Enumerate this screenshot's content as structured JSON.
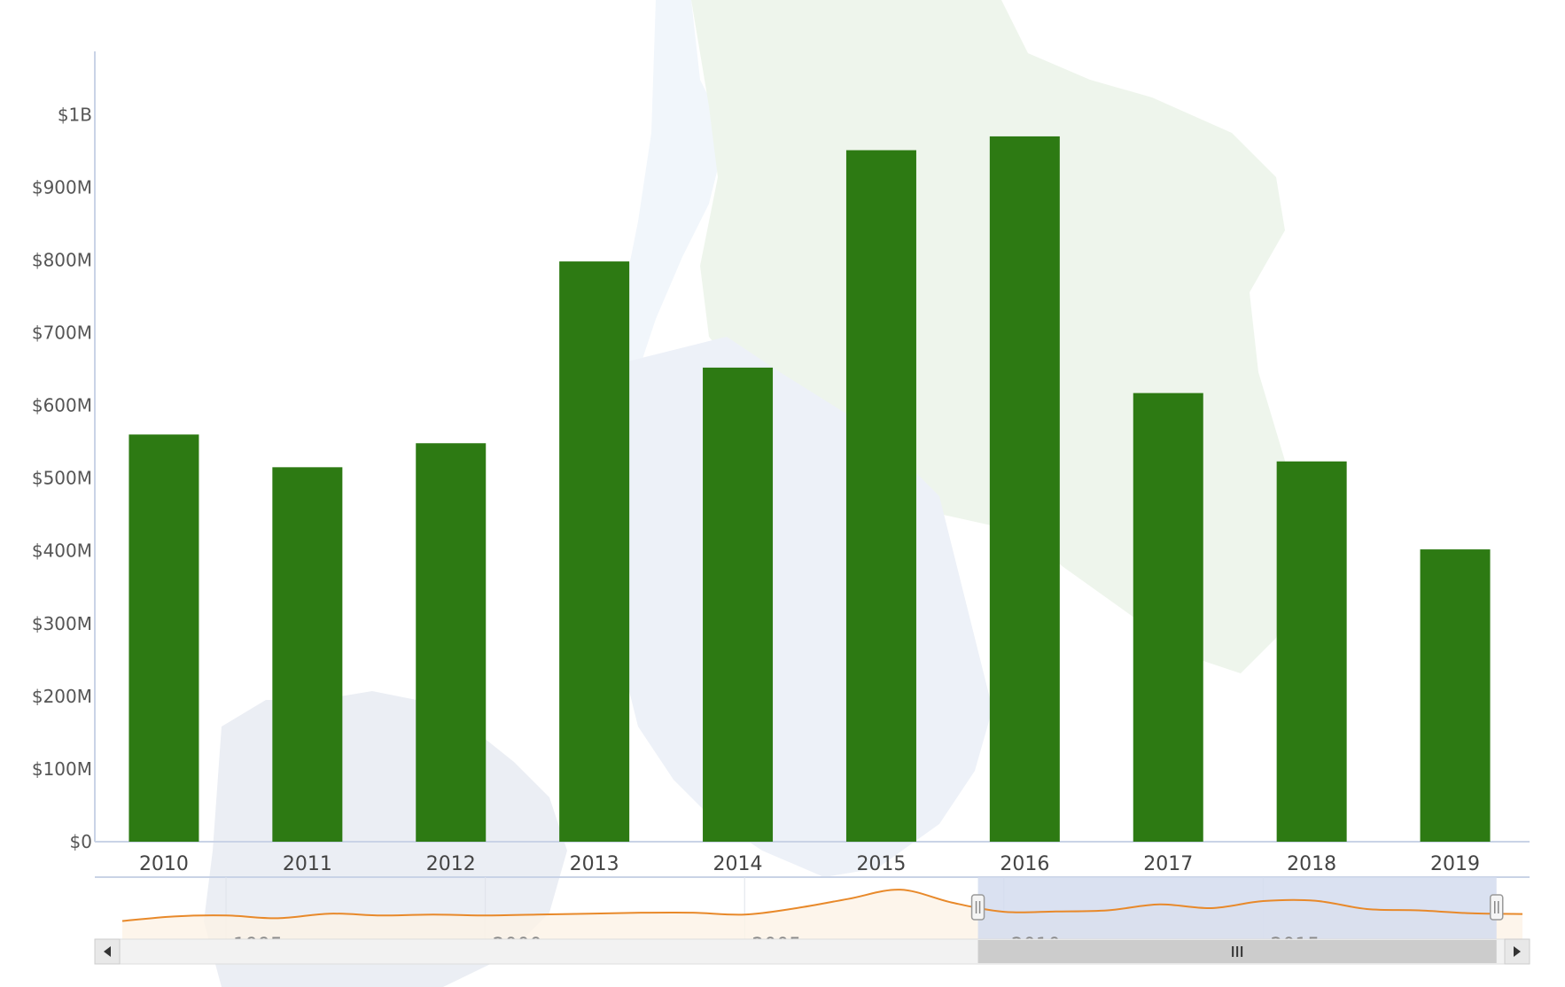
{
  "chart_data": {
    "type": "bar",
    "title": "",
    "xlabel": "",
    "ylabel": "",
    "categories": [
      "2010",
      "2011",
      "2012",
      "2013",
      "2014",
      "2015",
      "2016",
      "2017",
      "2018",
      "2019"
    ],
    "values": [
      560,
      515,
      548,
      798,
      652,
      951,
      970,
      617,
      523,
      402
    ],
    "value_unit": "$M",
    "ylim": [
      0,
      1100
    ],
    "y_ticks": [
      {
        "value": 0,
        "label": "$0"
      },
      {
        "value": 100,
        "label": "$100M"
      },
      {
        "value": 200,
        "label": "$200M"
      },
      {
        "value": 300,
        "label": "$300M"
      },
      {
        "value": 400,
        "label": "$400M"
      },
      {
        "value": 500,
        "label": "$500M"
      },
      {
        "value": 600,
        "label": "$600M"
      },
      {
        "value": 700,
        "label": "$700M"
      },
      {
        "value": 800,
        "label": "$800M"
      },
      {
        "value": 900,
        "label": "$900M"
      },
      {
        "value": 1000,
        "label": "$1B"
      }
    ],
    "grid": false,
    "legend": "none",
    "bar_color": "#2d7a13",
    "navigator": {
      "x_range": [
        1993,
        2020
      ],
      "selected_range": [
        2009.5,
        2019.5
      ],
      "tick_labels": [
        "1995",
        "2000",
        "2005",
        "2010",
        "2015"
      ],
      "series_color": "#e8892a",
      "selection_color": "#d3dcef",
      "series": [
        {
          "x": 1993,
          "y": 210
        },
        {
          "x": 1994,
          "y": 235
        },
        {
          "x": 1995,
          "y": 240
        },
        {
          "x": 1996,
          "y": 225
        },
        {
          "x": 1997,
          "y": 250
        },
        {
          "x": 1998,
          "y": 240
        },
        {
          "x": 1999,
          "y": 245
        },
        {
          "x": 2000,
          "y": 240
        },
        {
          "x": 2001,
          "y": 245
        },
        {
          "x": 2002,
          "y": 250
        },
        {
          "x": 2003,
          "y": 255
        },
        {
          "x": 2004,
          "y": 255
        },
        {
          "x": 2005,
          "y": 245
        },
        {
          "x": 2006,
          "y": 280
        },
        {
          "x": 2007,
          "y": 330
        },
        {
          "x": 2008,
          "y": 380
        },
        {
          "x": 2009,
          "y": 310
        },
        {
          "x": 2010,
          "y": 260
        },
        {
          "x": 2011,
          "y": 262
        },
        {
          "x": 2012,
          "y": 268
        },
        {
          "x": 2013,
          "y": 300
        },
        {
          "x": 2014,
          "y": 280
        },
        {
          "x": 2015,
          "y": 318
        },
        {
          "x": 2016,
          "y": 320
        },
        {
          "x": 2017,
          "y": 275
        },
        {
          "x": 2018,
          "y": 268
        },
        {
          "x": 2019,
          "y": 252
        },
        {
          "x": 2020,
          "y": 248
        }
      ]
    }
  },
  "icons": {
    "scroll_left": "arrow-left-icon",
    "scroll_right": "arrow-right-icon",
    "grip": "grip-icon"
  }
}
